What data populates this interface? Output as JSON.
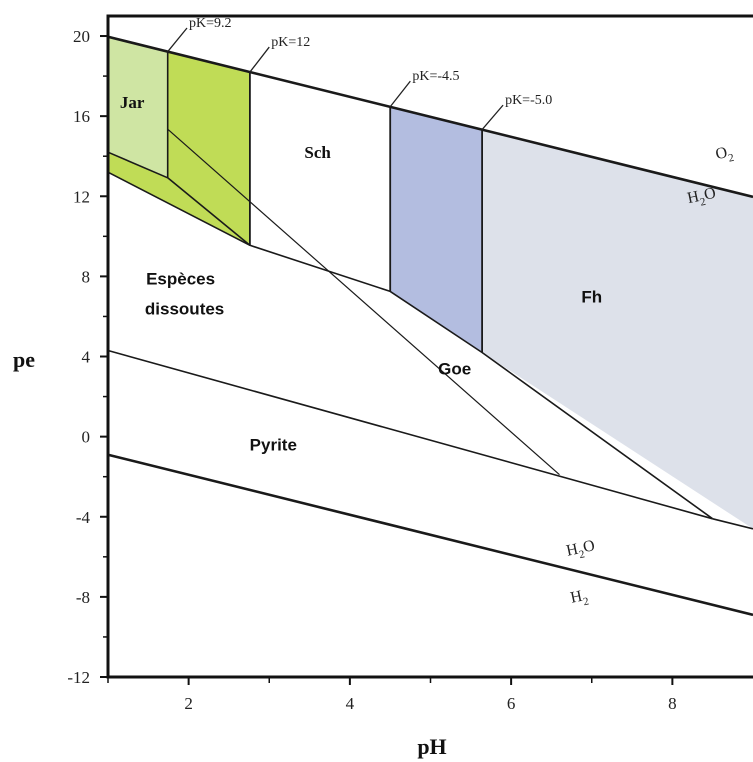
{
  "chart_data": {
    "type": "diagram",
    "xlabel": "pH",
    "ylabel": "pe",
    "xlim": [
      1.0,
      9.0
    ],
    "ylim": [
      -12,
      21
    ],
    "x_ticks": [
      "2",
      "4",
      "6",
      "8"
    ],
    "x_tick_values": [
      2,
      4,
      6,
      8
    ],
    "y_ticks": [
      "20",
      "16",
      "12",
      "8",
      "4",
      "0",
      "-4",
      "-8",
      "-12"
    ],
    "y_tick_values": [
      20,
      16,
      12,
      8,
      4,
      0,
      -4,
      -8,
      -12
    ],
    "colors": {
      "jar": "#cfe5a3",
      "jar_dark": "#c0dc56",
      "pk12_band": "#c0dc56",
      "sch": "#ffffff",
      "pk45_band": "#b3bde0",
      "fh": "#dde1ea",
      "lines": "#1a1a1a"
    },
    "regions": [
      {
        "name": "jar-light",
        "color_key": "jar",
        "points": [
          [
            1.0,
            19.96
          ],
          [
            1.74,
            19.22
          ],
          [
            1.74,
            12.92
          ],
          [
            1.0,
            14.2
          ]
        ]
      },
      {
        "name": "jar-band",
        "color_key": "jar_dark",
        "points": [
          [
            1.0,
            14.2
          ],
          [
            1.74,
            12.92
          ],
          [
            2.76,
            9.55
          ],
          [
            1.0,
            13.2
          ]
        ]
      },
      {
        "name": "pk12-band",
        "color_key": "pk12_band",
        "points": [
          [
            1.74,
            19.22
          ],
          [
            2.76,
            18.2
          ],
          [
            2.76,
            9.55
          ],
          [
            1.74,
            12.92
          ]
        ]
      },
      {
        "name": "pk45-band",
        "color_key": "pk45_band",
        "points": [
          [
            4.5,
            16.47
          ],
          [
            5.64,
            15.33
          ],
          [
            5.64,
            4.2
          ],
          [
            4.5,
            7.25
          ]
        ]
      },
      {
        "name": "fh-region",
        "color_key": "fh",
        "points": [
          [
            5.64,
            15.33
          ],
          [
            9.0,
            11.97
          ],
          [
            9.0,
            -4.6
          ],
          [
            5.64,
            4.2
          ]
        ]
      }
    ],
    "lines": [
      {
        "name": "o2-h2o-boundary",
        "width": 2.6,
        "points": [
          [
            1.0,
            19.96
          ],
          [
            9.0,
            11.97
          ]
        ]
      },
      {
        "name": "h2o-h2-boundary",
        "width": 2.6,
        "points": [
          [
            1.0,
            -0.9
          ],
          [
            9.0,
            -8.9
          ]
        ]
      },
      {
        "name": "dissolved-lower-boundary",
        "width": 1.6,
        "points": [
          [
            1.0,
            13.2
          ],
          [
            2.76,
            9.55
          ],
          [
            4.5,
            7.25
          ],
          [
            5.64,
            4.2
          ],
          [
            8.5,
            -4.1
          ]
        ]
      },
      {
        "name": "jar-inner-boundary",
        "width": 1.6,
        "points": [
          [
            1.0,
            14.2
          ],
          [
            1.74,
            12.92
          ],
          [
            2.76,
            9.55
          ]
        ]
      },
      {
        "name": "pk12-inner-line",
        "width": 1.2,
        "points": [
          [
            1.74,
            15.35
          ],
          [
            6.6,
            -1.9
          ]
        ]
      },
      {
        "name": "pyrite-upper-boundary",
        "width": 1.6,
        "points": [
          [
            1.0,
            4.3
          ],
          [
            8.5,
            -4.1
          ]
        ]
      },
      {
        "name": "fh-lower-boundary",
        "width": 1.6,
        "points": [
          [
            8.5,
            -4.1
          ],
          [
            9.0,
            -4.6
          ]
        ]
      },
      {
        "name": "pk92-vertical",
        "width": 1.6,
        "points": [
          [
            1.74,
            19.22
          ],
          [
            1.74,
            12.92
          ]
        ]
      },
      {
        "name": "pk12-vertical",
        "width": 1.8,
        "points": [
          [
            2.76,
            18.2
          ],
          [
            2.76,
            9.55
          ]
        ]
      },
      {
        "name": "pk45-vertical",
        "width": 1.8,
        "points": [
          [
            4.5,
            16.47
          ],
          [
            4.5,
            7.25
          ]
        ]
      },
      {
        "name": "pk50-vertical",
        "width": 1.8,
        "points": [
          [
            5.64,
            15.33
          ],
          [
            5.64,
            4.2
          ]
        ]
      }
    ],
    "region_labels": [
      {
        "name": "jar-label",
        "text": "Jar",
        "x": 1.3,
        "y": 16.4,
        "class": "serif"
      },
      {
        "name": "sch-label",
        "text": "Sch",
        "x": 3.6,
        "y": 13.9,
        "class": "serif"
      },
      {
        "name": "especes-label-1",
        "text": "Espèces",
        "x": 1.9,
        "y": 7.6,
        "class": "sans"
      },
      {
        "name": "especes-label-2",
        "text": "dissoutes",
        "x": 1.95,
        "y": 6.1,
        "class": "sans"
      },
      {
        "name": "fh-label",
        "text": "Fh",
        "x": 7.0,
        "y": 6.7,
        "class": "sans"
      },
      {
        "name": "goe-label",
        "text": "Goe",
        "x": 5.3,
        "y": 3.1,
        "class": "sans"
      },
      {
        "name": "pyrite-label",
        "text": "Pyrite",
        "x": 3.05,
        "y": -0.7,
        "class": "sans"
      }
    ],
    "pk_labels": [
      {
        "name": "pk-9-2-label",
        "text": "pK=9.2",
        "line_from": [
          1.74,
          19.22
        ],
        "line_to": [
          1.98,
          20.4
        ],
        "x": 1.98,
        "y": 20.4
      },
      {
        "name": "pk-12-label",
        "text": "pK=12",
        "line_from": [
          2.76,
          18.2
        ],
        "line_to": [
          3.0,
          19.45
        ],
        "x": 3.0,
        "y": 19.45
      },
      {
        "name": "pk-4-5-label",
        "text": "pK=-4.5",
        "line_from": [
          4.5,
          16.47
        ],
        "line_to": [
          4.75,
          17.75
        ],
        "x": 4.75,
        "y": 17.75
      },
      {
        "name": "pk-5-0-label",
        "text": "pK=-5.0",
        "line_from": [
          5.64,
          15.33
        ],
        "line_to": [
          5.9,
          16.55
        ],
        "x": 5.9,
        "y": 16.55
      }
    ],
    "line_labels": [
      {
        "name": "o2-label",
        "base": "O",
        "sub": "2",
        "x": 8.55,
        "y": 13.85,
        "rot": -12
      },
      {
        "name": "h2o-upper-label",
        "base": "H",
        "sub": "2",
        "tail": "O",
        "x": 8.2,
        "y": 11.65,
        "rot": -12
      },
      {
        "name": "h2o-lower-label",
        "base": "H",
        "sub": "2",
        "tail": "O",
        "x": 6.7,
        "y": -5.95,
        "rot": -12
      },
      {
        "name": "h2-label",
        "base": "H",
        "sub": "2",
        "x": 6.75,
        "y": -8.3,
        "rot": -12
      }
    ]
  }
}
